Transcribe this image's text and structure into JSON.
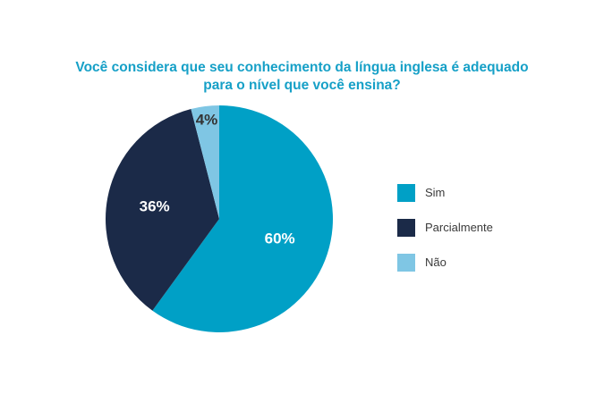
{
  "chart_data": {
    "type": "pie",
    "title_lines": [
      "Você considera que seu conhecimento da língua inglesa é adequado",
      "para o nível que você ensina?"
    ],
    "slices": [
      {
        "label": "Sim",
        "value": 60,
        "display": "60%",
        "color": "#00a0c6",
        "label_color": "#ffffff"
      },
      {
        "label": "Parcialmente",
        "value": 36,
        "display": "36%",
        "color": "#1b2a48",
        "label_color": "#ffffff"
      },
      {
        "label": "Não",
        "value": 4,
        "display": "4%",
        "color": "#7fc6e4",
        "label_color": "#333333"
      }
    ],
    "legend_position": "right"
  }
}
